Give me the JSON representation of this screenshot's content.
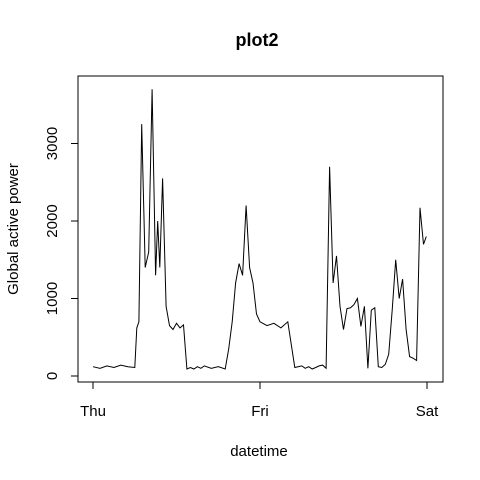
{
  "chart_data": {
    "type": "line",
    "title": "plot2",
    "xlabel": "datetime",
    "ylabel": "Global active power",
    "x_ticks": [
      "Thu",
      "Fri",
      "Sat"
    ],
    "y_ticks": [
      0,
      1000,
      2000,
      3000
    ],
    "xlim": [
      "Thu 00:00",
      "Sat 00:00"
    ],
    "ylim": [
      0,
      3700
    ],
    "grid": false,
    "legend": "none",
    "line_color": "#000000",
    "series": [
      {
        "x_hours": [
          0,
          1,
          2,
          3,
          4,
          5,
          6,
          6.3,
          6.6,
          7,
          7.5,
          8,
          8.5,
          9,
          9.3,
          9.6,
          10,
          10.5,
          11,
          11.5,
          12,
          12.5,
          13,
          13.5,
          14,
          14.5,
          15,
          15.5,
          16,
          17,
          18,
          19,
          19.5,
          20,
          20.5,
          21,
          21.5,
          22,
          22.5,
          23,
          23.5,
          24,
          25,
          26,
          27,
          28,
          29,
          30,
          30.5,
          31,
          31.5,
          32,
          32.5,
          33,
          33.5,
          34,
          34.5,
          35,
          35.5,
          36,
          36.5,
          37,
          37.5,
          38,
          38.5,
          39,
          39.5,
          40,
          40.5,
          41,
          41.5,
          42,
          42.5,
          43,
          43.5,
          44,
          44.5,
          45,
          45.5,
          46,
          46.5,
          47,
          47.5,
          47.9
        ],
        "values": [
          120,
          100,
          130,
          110,
          140,
          120,
          110,
          620,
          700,
          3250,
          1400,
          1600,
          3700,
          1300,
          2000,
          1400,
          2550,
          900,
          650,
          600,
          680,
          620,
          660,
          90,
          110,
          90,
          120,
          100,
          130,
          100,
          120,
          90,
          350,
          700,
          1200,
          1450,
          1300,
          2200,
          1400,
          1200,
          800,
          700,
          650,
          680,
          620,
          700,
          110,
          130,
          100,
          120,
          90,
          110,
          130,
          140,
          100,
          2700,
          1200,
          1550,
          900,
          600,
          870,
          880,
          920,
          1000,
          640,
          900,
          100,
          850,
          880,
          120,
          110,
          150,
          280,
          850,
          1500,
          1000,
          1250,
          600,
          250,
          230,
          200,
          2170,
          1700,
          1800
        ]
      }
    ]
  }
}
